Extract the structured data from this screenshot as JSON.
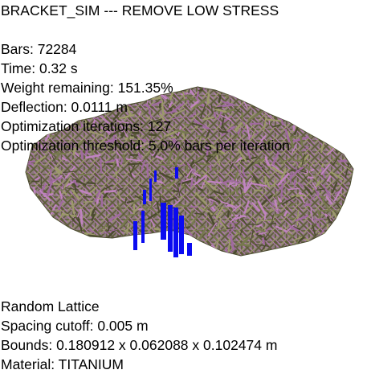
{
  "title": "BRACKET_SIM --- REMOVE LOW STRESS",
  "stats": {
    "bars": "Bars: 72284",
    "time": "Time: 0.32 s",
    "weight_remaining": "Weight remaining: 151.35%",
    "deflection": "Deflection: 0.0111 m",
    "optimization_iterations": "Optimization iterations: 127",
    "optimization_threshold": "Optimization threshold: 5.0% bars per iteration"
  },
  "info": {
    "lattice_type": "Random Lattice",
    "spacing_cutoff": "Spacing cutoff: 0.005 m",
    "bounds": "Bounds: 0.180912 x 0.062088 x 0.102474 m",
    "material": "Material: TITANIUM"
  },
  "colors": {
    "background": "#ffffff",
    "lattice_olive": "#77794f",
    "lattice_purple": "#a06aa0",
    "lattice_dark": "#4a4a2e",
    "support_blue": "#0b0bf0",
    "text": "#000000"
  }
}
